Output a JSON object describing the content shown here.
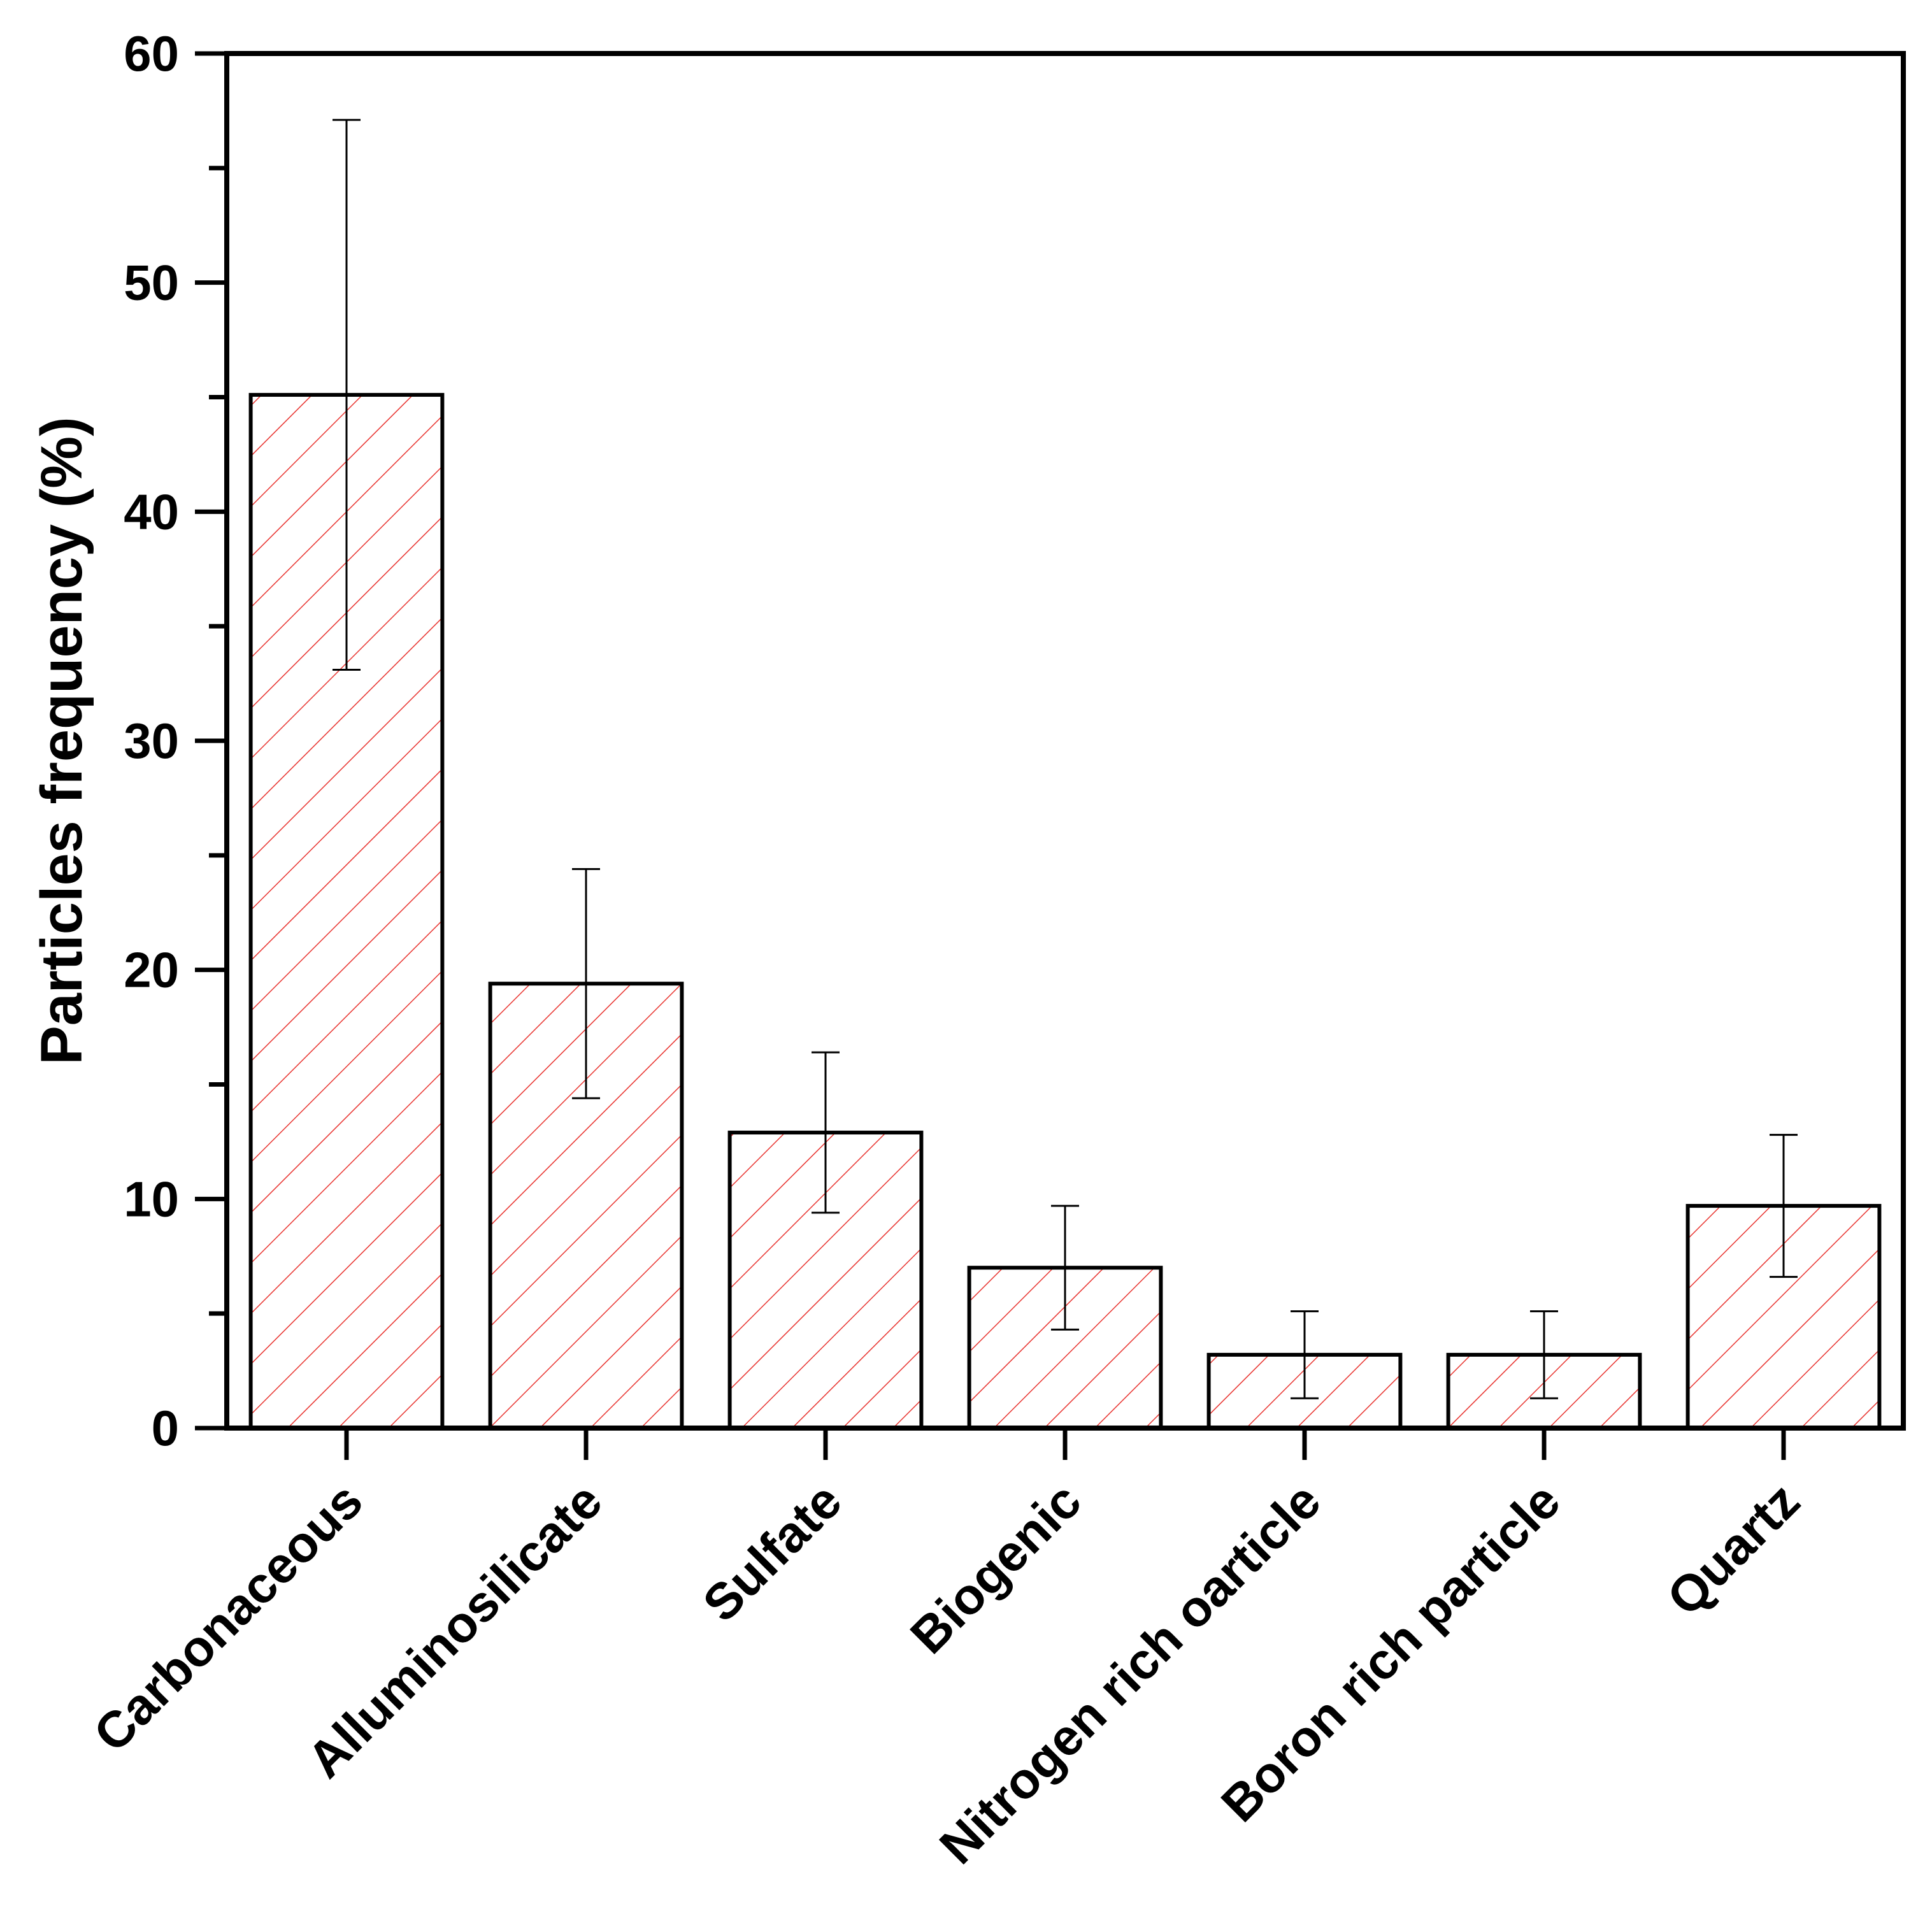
{
  "chart_data": {
    "type": "bar",
    "title": "",
    "xlabel": "",
    "ylabel": "Particles frequency (%)",
    "ylim": [
      0,
      60
    ],
    "yticks": [
      0,
      10,
      20,
      30,
      40,
      50,
      60
    ],
    "y_minor_step": 5,
    "grid": false,
    "legend": "none",
    "categories": [
      "Carbonaceous",
      "Alluminosilicate",
      "Sulfate",
      "Biogenic",
      "Nitrogen rich oarticle",
      "Boron rich particle",
      "Quartz"
    ],
    "values": [
      45.1,
      19.4,
      12.9,
      7.0,
      3.2,
      3.2,
      9.7
    ],
    "errors": [
      12.0,
      5.0,
      3.5,
      2.7,
      1.9,
      1.9,
      3.1
    ],
    "bar_fill_pattern": "diagonal-hatch",
    "colors": {
      "hatch": "#e8332f",
      "outline": "#000000",
      "error_bar": "#000000"
    }
  }
}
